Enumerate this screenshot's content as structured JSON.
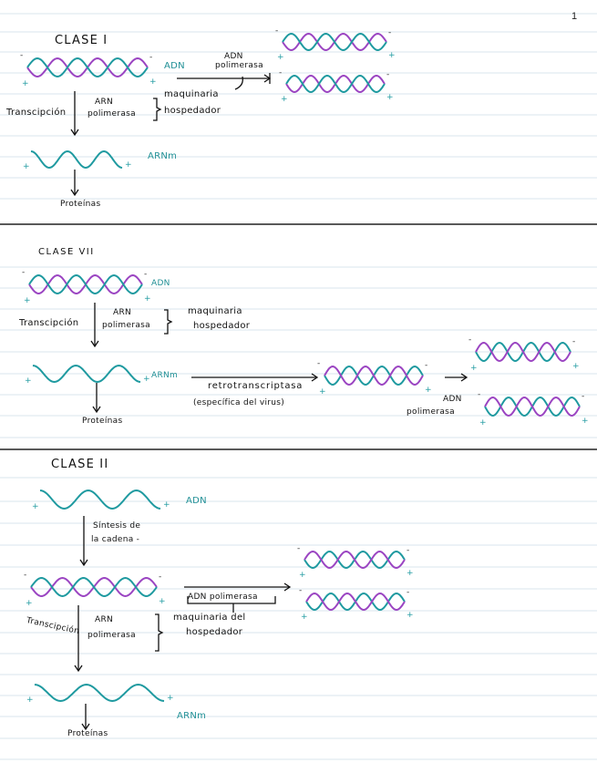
{
  "page_number": "1",
  "colors": {
    "teal": "#1f9aa0",
    "purple": "#9b45c2",
    "rule": "#d9e6ee",
    "divider": "#222222"
  },
  "section1": {
    "title": "CLASE I",
    "genome": "ADN",
    "enzyme_top": "ADN",
    "enzyme_bottom": "polimerasa",
    "process": "Transcipción",
    "arn_top": "ARN",
    "arn_bottom": "polimerasa",
    "host_top": "maquinaria",
    "host_bottom": "hospedador",
    "mrna": "ARNm",
    "product": "Proteínas"
  },
  "section2": {
    "title": "CLASE VII",
    "genome": "ADN",
    "process": "Transcipción",
    "arn_top": "ARN",
    "arn_bottom": "polimerasa",
    "host_top": "maquinaria",
    "host_bottom": "hospedador",
    "mrna": "ARNm",
    "product": "Proteínas",
    "rt_label": "retrotranscriptasa",
    "rt_note": "(específica del virus)",
    "adn_top": "ADN",
    "adn_bottom": "polimerasa"
  },
  "section3": {
    "title": "CLASE II",
    "genome": "ADN",
    "synth_top": "Síntesis de",
    "synth_bottom": "la cadena -",
    "enzyme": "ADN polimerasa",
    "host_top": "maquinaria del",
    "host_bottom": "hospedador",
    "process": "Transcipción",
    "arn_top": "ARN",
    "arn_bottom": "polimerasa",
    "mrna": "ARNm",
    "product": "Proteínas"
  }
}
